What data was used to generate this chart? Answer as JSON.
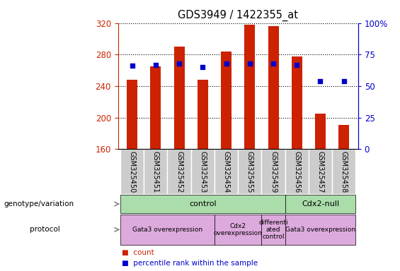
{
  "title": "GDS3949 / 1422355_at",
  "samples": [
    "GSM325450",
    "GSM325451",
    "GSM325452",
    "GSM325453",
    "GSM325454",
    "GSM325455",
    "GSM325459",
    "GSM325456",
    "GSM325457",
    "GSM325458"
  ],
  "counts": [
    248,
    265,
    290,
    248,
    284,
    318,
    316,
    278,
    205,
    191
  ],
  "percentile_ranks": [
    66,
    67,
    68,
    65,
    68,
    68,
    68,
    67,
    54,
    54
  ],
  "ylim_left": [
    160,
    320
  ],
  "ylim_right": [
    0,
    100
  ],
  "yticks_left": [
    160,
    200,
    240,
    280,
    320
  ],
  "yticks_right": [
    0,
    25,
    50,
    75,
    100
  ],
  "bar_color": "#cc2200",
  "dot_color": "#0000cc",
  "bar_width": 0.45,
  "genotype_groups": [
    {
      "label": "control",
      "start": 0,
      "end": 7
    },
    {
      "label": "Cdx2-null",
      "start": 7,
      "end": 10
    }
  ],
  "protocol_groups": [
    {
      "label": "Gata3 overexpression",
      "start": 0,
      "end": 4
    },
    {
      "label": "Cdx2\noverexpression",
      "start": 4,
      "end": 6
    },
    {
      "label": "differenti\nated\ncontrol",
      "start": 6,
      "end": 7
    },
    {
      "label": "Gata3 overexpression",
      "start": 7,
      "end": 10
    }
  ],
  "left_label_genotype": "genotype/variation",
  "left_label_protocol": "protocol",
  "geno_color": "#aaddaa",
  "proto_color": "#ddaadd",
  "sample_box_color": "#cccccc",
  "legend_count_label": "count",
  "legend_pct_label": "percentile rank within the sample"
}
